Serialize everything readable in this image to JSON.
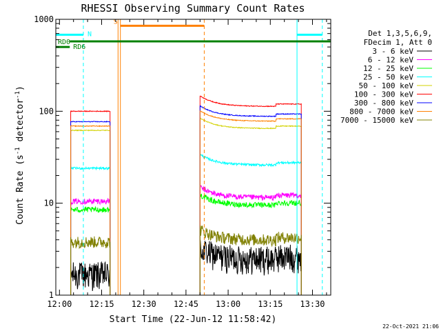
{
  "chart_data": {
    "type": "line",
    "title": "RHESSI Observing Summary Count Rates",
    "xlabel": "Start Time (22-Jun-12 11:58:42)",
    "ylabel": "Count Rate (s",
    "ylabel_sup": "-1",
    "ylabel_tail": " detector",
    "ylabel_sup2": "-1",
    "ylabel_end": ")",
    "y_scale": "log",
    "ylim": [
      1,
      1000
    ],
    "y_ticks": [
      {
        "value": 1,
        "label": "1"
      },
      {
        "value": 10,
        "label": "10"
      },
      {
        "value": 100,
        "label": "100"
      },
      {
        "value": 1000,
        "label": "1000"
      }
    ],
    "xlim": [
      "11:58:42",
      "13:36:30"
    ],
    "x_ticks": [
      {
        "value": "12:00",
        "label": "12:00"
      },
      {
        "value": "12:15",
        "label": "12:15"
      },
      {
        "value": "12:30",
        "label": "12:30"
      },
      {
        "value": "12:45",
        "label": "12:45"
      },
      {
        "value": "13:00",
        "label": "13:00"
      },
      {
        "value": "13:15",
        "label": "13:15"
      },
      {
        "value": "13:30",
        "label": "13:30"
      }
    ],
    "grid": false,
    "legend_position": "right",
    "legend_header": [
      "Det 1,3,5,6,9,",
      "FDecim 1, Att 0"
    ],
    "data_intervals": [
      [
        "12:04",
        "12:18"
      ],
      [
        "12:50",
        "13:26"
      ]
    ],
    "series": [
      {
        "name": "3 - 6 keV",
        "color": "#000000",
        "values": [
          1.7,
          2.5
        ],
        "noise": 0.35
      },
      {
        "name": "6 - 12 keV",
        "color": "#ff00ff",
        "values": [
          10.5,
          11.5
        ],
        "noise": 0.07
      },
      {
        "name": "12 - 25 keV",
        "color": "#00ff00",
        "values": [
          8.5,
          9.5
        ],
        "noise": 0.07
      },
      {
        "name": "25 - 50 keV",
        "color": "#00ffff",
        "values": [
          24,
          26
        ],
        "noise": 0.03
      },
      {
        "name": "50 - 100 keV",
        "color": "#d2d200",
        "values": [
          62,
          65
        ],
        "noise": 0.01
      },
      {
        "name": "100 - 300 keV",
        "color": "#ff0000",
        "values": [
          100,
          113
        ],
        "noise": 0.01
      },
      {
        "name": "300 - 800 keV",
        "color": "#0000ff",
        "values": [
          77,
          88
        ],
        "noise": 0.01
      },
      {
        "name": "800 - 7000 keV",
        "color": "#ff8000",
        "values": [
          69,
          78
        ],
        "noise": 0.01
      },
      {
        "name": "7000 - 15000 keV",
        "color": "#808000",
        "values": [
          3.8,
          4.0
        ],
        "noise": 0.15
      }
    ],
    "flags": [
      {
        "label": "N",
        "color": "#00ffff",
        "value": 680,
        "intervals": [
          [
            "11:58:42",
            "12:08:30"
          ],
          [
            "13:24:30",
            "13:33:30"
          ]
        ]
      },
      {
        "label": "RD0",
        "color": "#008000",
        "value": 500,
        "intervals": [
          [
            "11:58:42",
            "12:03:40"
          ]
        ]
      },
      {
        "label": "RD6",
        "color": "#008000",
        "value": 575,
        "intervals": [
          [
            "12:03:40",
            "13:36:30"
          ]
        ]
      },
      {
        "label": "S",
        "color": "#ff8000",
        "value": 850,
        "intervals": [
          [
            "12:21:40",
            "12:51:30"
          ]
        ]
      }
    ],
    "event_lines": [
      {
        "time": "12:08:30",
        "color": "#00ffff",
        "style": "dashed"
      },
      {
        "time": "12:20:50",
        "color": "#ff8000",
        "style": "solid"
      },
      {
        "time": "12:21:40",
        "color": "#ff8000",
        "style": "solid"
      },
      {
        "time": "12:51:30",
        "color": "#ff8000",
        "style": "dashed"
      },
      {
        "time": "13:24:30",
        "color": "#00ffff",
        "style": "solid"
      },
      {
        "time": "13:33:30",
        "color": "#00ffff",
        "style": "dashed"
      }
    ],
    "footer": "22-Oct-2021 21:06"
  }
}
